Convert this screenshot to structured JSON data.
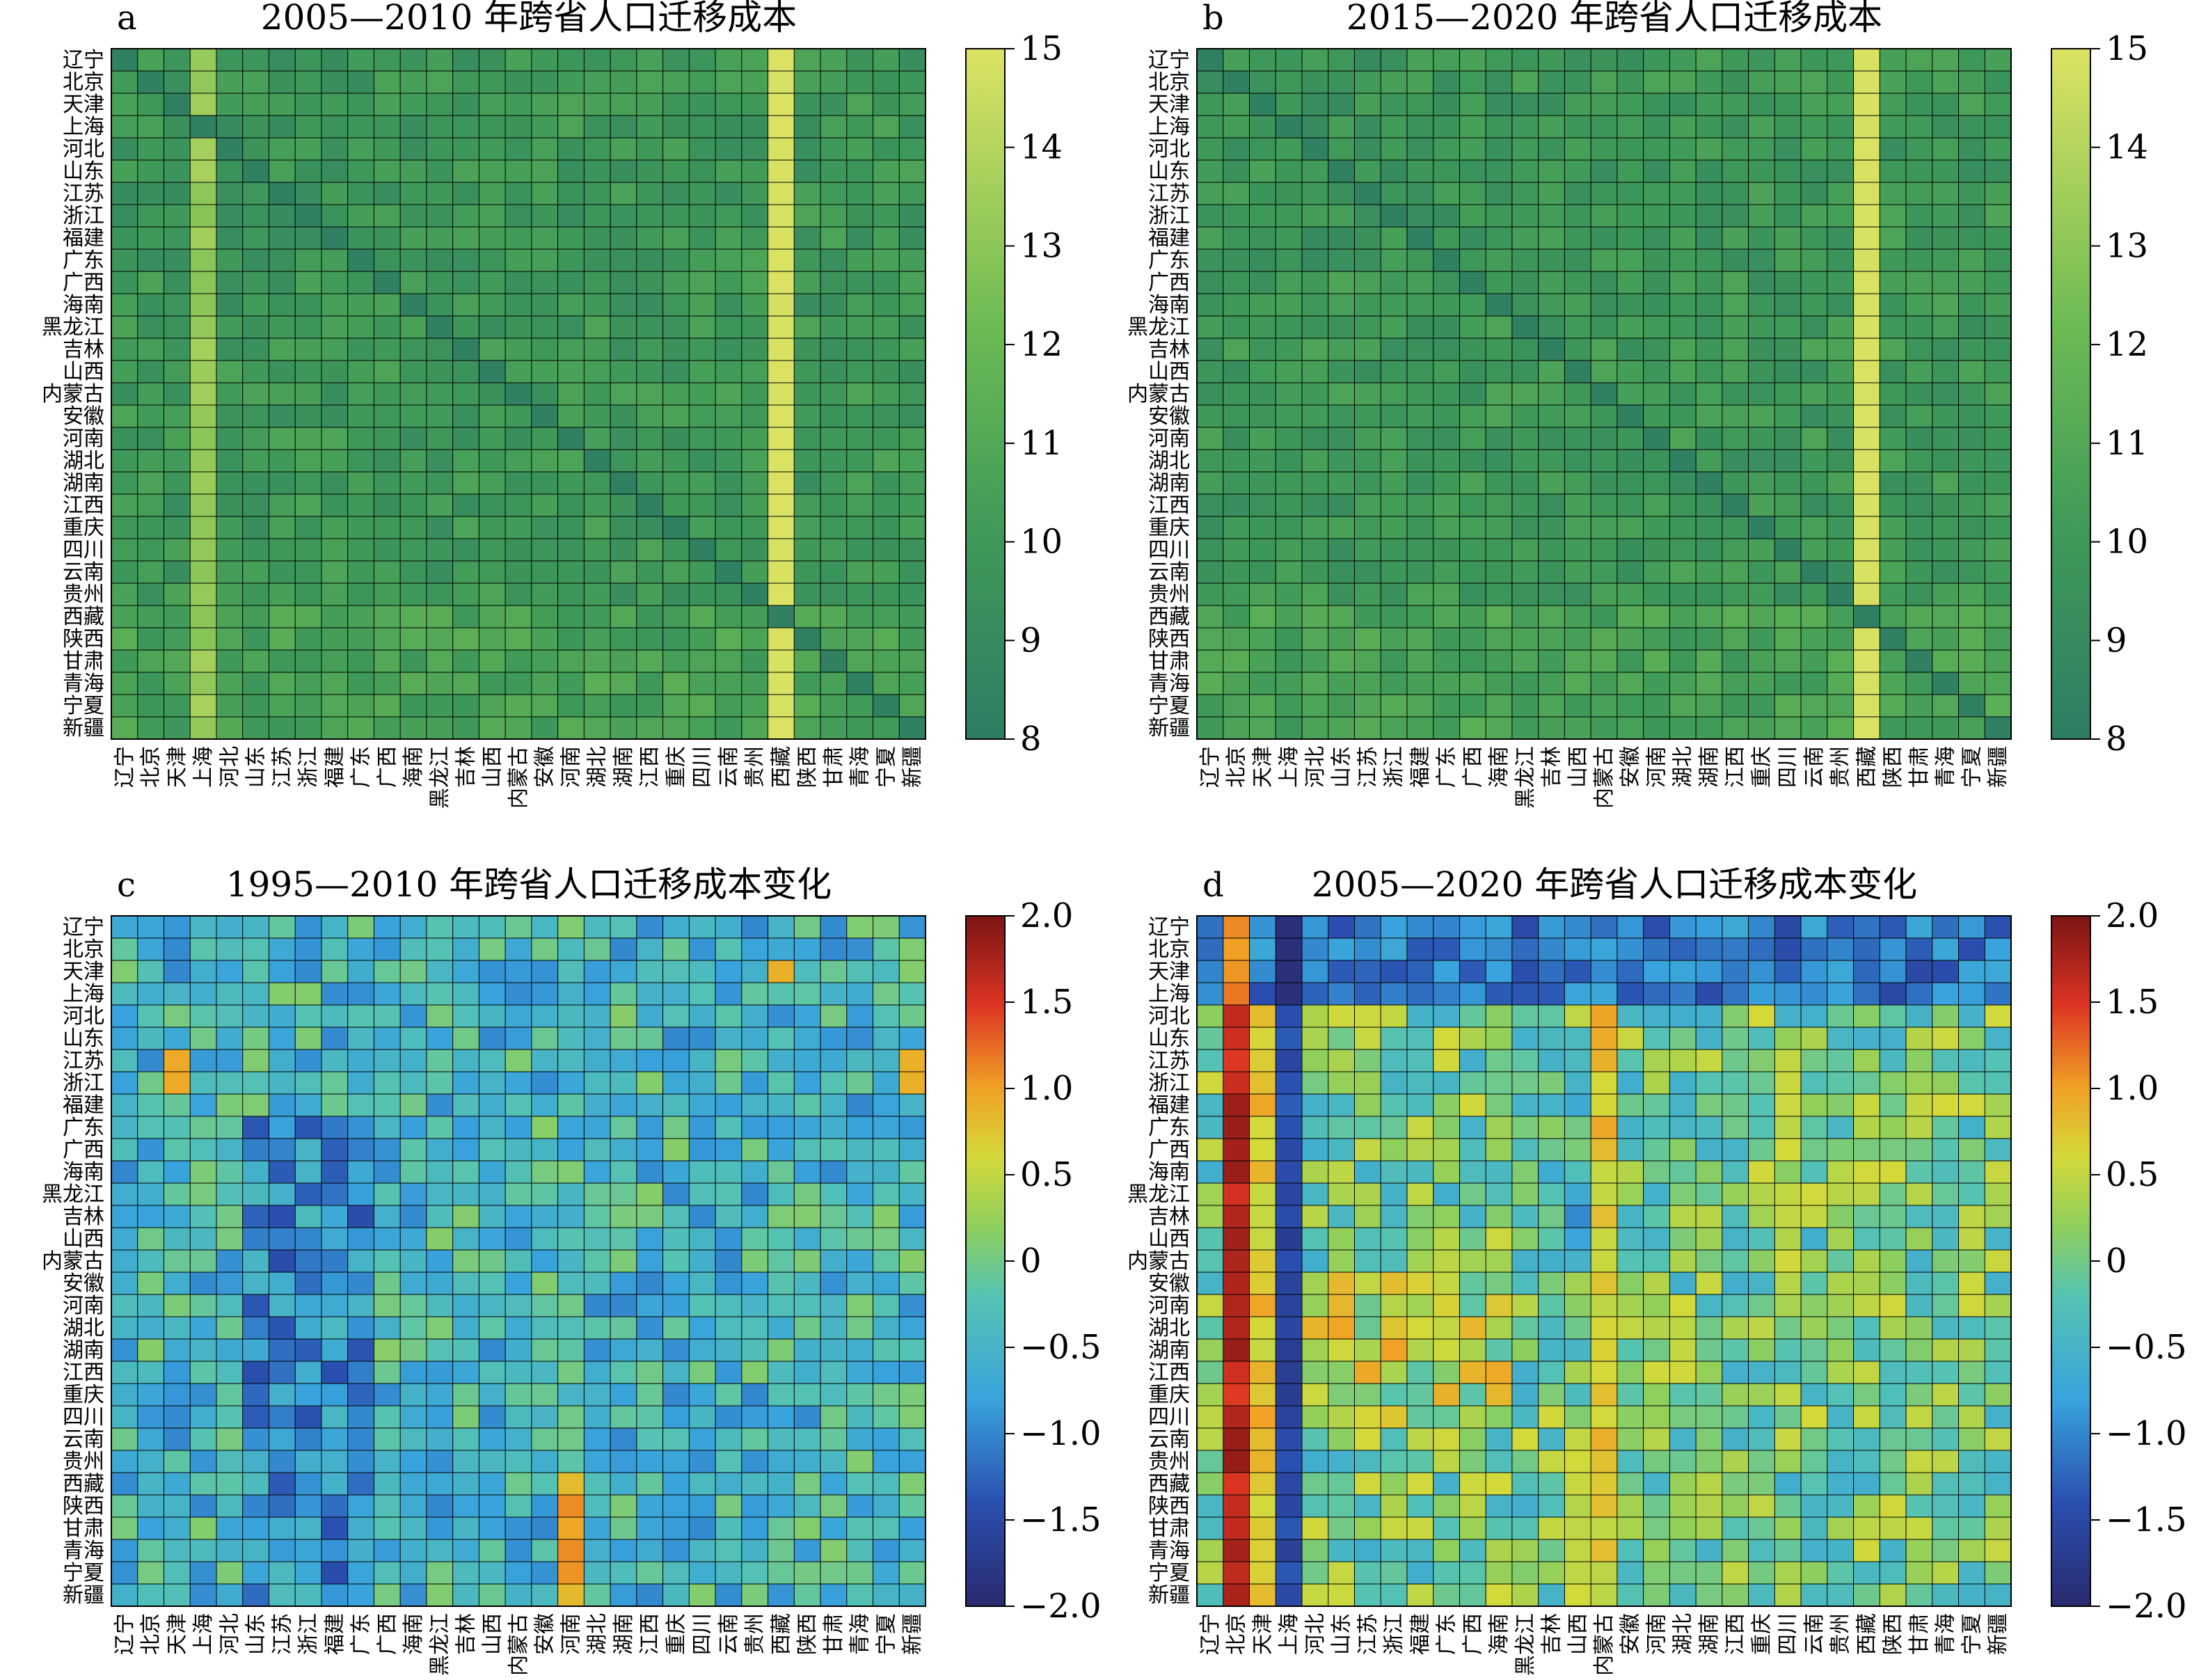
{
  "provinces": [
    "辽宁",
    "北京",
    "天津",
    "上海",
    "河北",
    "山东",
    "江苏",
    "浙江",
    "福建",
    "广东",
    "广西",
    "海南",
    "黑龙江",
    "吉林",
    "山西",
    "内蒙古",
    "安徽",
    "河南",
    "湖北",
    "湖南",
    "江西",
    "重庆",
    "四川",
    "云南",
    "贵州",
    "西藏",
    "陕西",
    "甘肃",
    "青海",
    "宁夏",
    "新疆"
  ],
  "colors": {
    "viridis_low": "#2e7d64",
    "viridis_high": "#dde363",
    "jet_low": "#2a2a6e",
    "jet_mid": "#8fcf5c",
    "jet_high": "#7a1414"
  },
  "chart_data": [
    {
      "type": "heatmap",
      "panel_label": "a",
      "title": "2005—2010 年跨省人口迁移成本",
      "colormap": "viridis",
      "colorbar_range": [
        8,
        15
      ],
      "colorbar_ticks": [
        "15",
        "14",
        "13",
        "12",
        "11",
        "10",
        "9",
        "8"
      ],
      "rows": "provinces",
      "cols": "provinces",
      "diagonal_estimate": 8.3,
      "column_estimates": {
        "上海": 13.5,
        "西藏": 14.8
      },
      "description_values": "Mostly 9–12 with a bright 西藏 column near 15 and a bright 上海 column near 13."
    },
    {
      "type": "heatmap",
      "panel_label": "b",
      "title": "2015—2020 年跨省人口迁移成本",
      "colormap": "viridis",
      "colorbar_range": [
        8,
        15
      ],
      "colorbar_ticks": [
        "15",
        "14",
        "13",
        "12",
        "11",
        "10",
        "9",
        "8"
      ],
      "rows": "provinces",
      "cols": "provinces",
      "diagonal_estimate": 8.3,
      "column_estimates": {
        "西藏": 14.9
      }
    },
    {
      "type": "heatmap",
      "panel_label": "c",
      "title": "1995—2010 年跨省人口迁移成本变化",
      "colormap": "jet",
      "colorbar_range": [
        -2.0,
        2.0
      ],
      "colorbar_ticks": [
        "2.0",
        "1.5",
        "1.0",
        "0.5",
        "0",
        "−0.5",
        "−1.0",
        "−1.5",
        "−2.0"
      ],
      "rows": "provinces",
      "cols": "provinces"
    },
    {
      "type": "heatmap",
      "panel_label": "d",
      "title": "2005—2020 年跨省人口迁移成本变化",
      "colormap": "jet",
      "colorbar_range": [
        -2.0,
        2.0
      ],
      "colorbar_ticks": [
        "2.0",
        "1.5",
        "1.0",
        "0.5",
        "0",
        "−0.5",
        "−1.0",
        "−1.5",
        "−2.0"
      ],
      "rows": "provinces",
      "cols": "provinces",
      "column_estimates": {
        "北京": 1.6,
        "天津": 0.8,
        "上海": -1.8,
        "内蒙古": 0.6
      }
    }
  ]
}
